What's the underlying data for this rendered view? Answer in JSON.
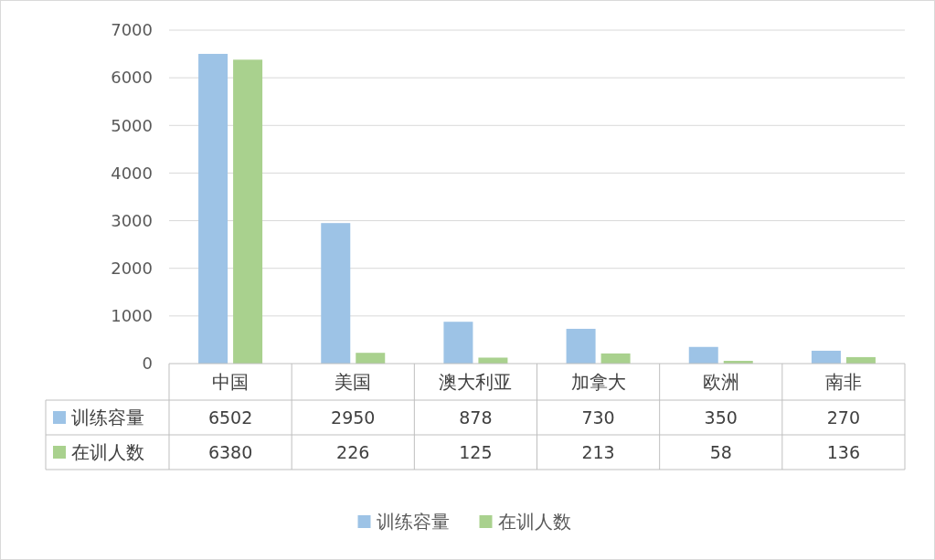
{
  "chart_data": {
    "type": "bar",
    "categories": [
      "中国",
      "美国",
      "澳大利亚",
      "加拿大",
      "欧洲",
      "南非"
    ],
    "series": [
      {
        "name": "训练容量",
        "color": "#9dc3e6",
        "values": [
          6502,
          2950,
          878,
          730,
          350,
          270
        ]
      },
      {
        "name": "在训人数",
        "color": "#a9d18e",
        "values": [
          6380,
          226,
          125,
          213,
          58,
          136
        ]
      }
    ],
    "ylim": [
      0,
      7000
    ],
    "yticks": [
      0,
      1000,
      2000,
      3000,
      4000,
      5000,
      6000,
      7000
    ],
    "grid": "y",
    "legend": "bottom",
    "data_labels": true
  }
}
